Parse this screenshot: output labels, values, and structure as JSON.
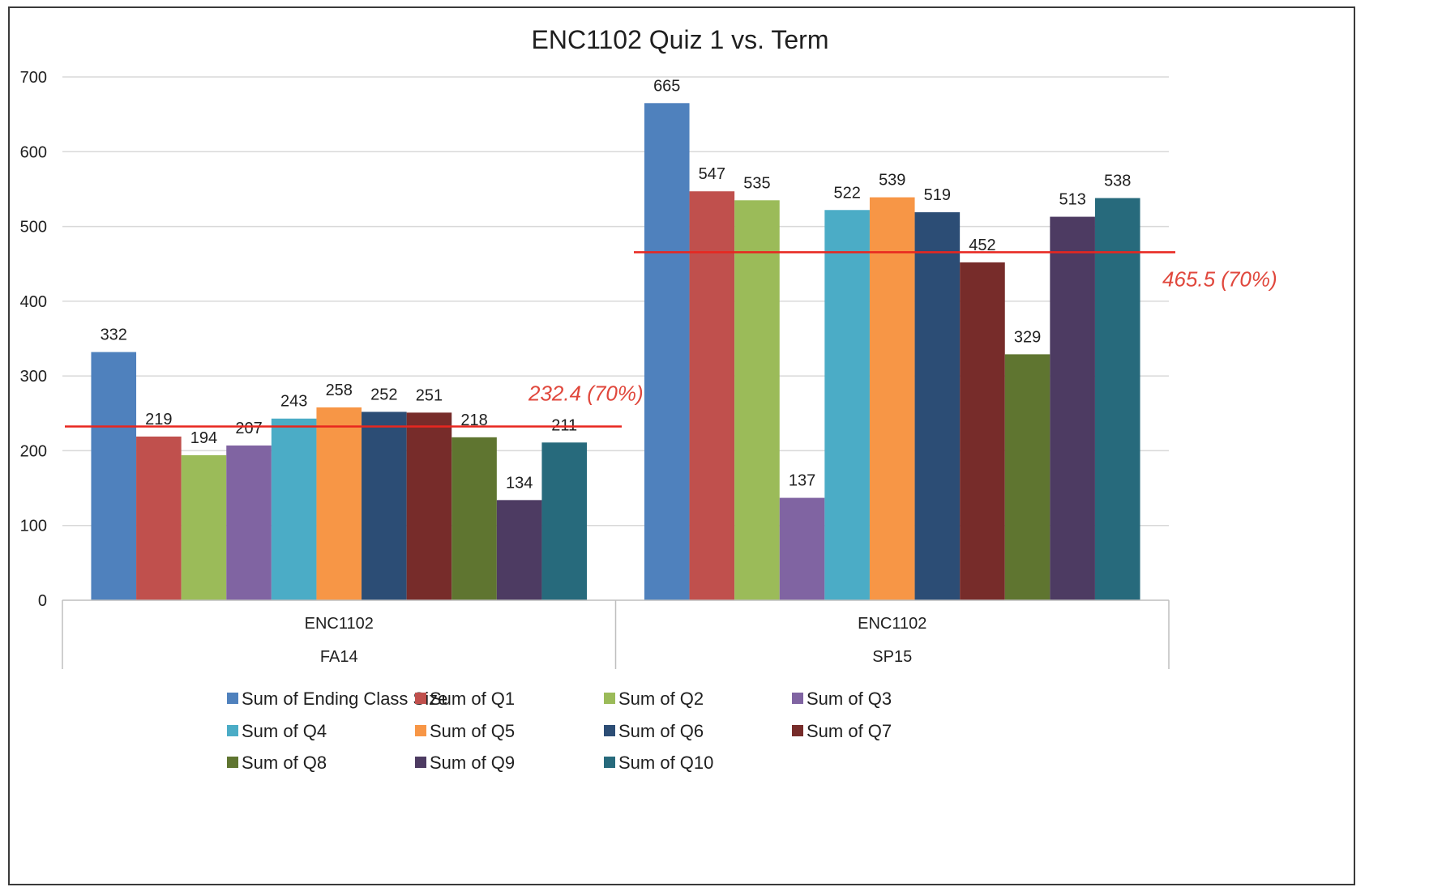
{
  "chart_data": {
    "type": "bar",
    "title": "ENC1102 Quiz 1 vs. Term",
    "xlabel": "",
    "ylabel": "",
    "ylim": [
      0,
      700
    ],
    "yticks": [
      0,
      100,
      200,
      300,
      400,
      500,
      600,
      700
    ],
    "grid": true,
    "legend_position": "bottom",
    "categories": [
      {
        "course": "ENC1102",
        "term": "FA14"
      },
      {
        "course": "ENC1102",
        "term": "SP15"
      }
    ],
    "series": [
      {
        "name": "Sum of Ending Class Size",
        "color": "#4f81bd",
        "values": [
          332,
          665
        ]
      },
      {
        "name": "Sum of Q1",
        "color": "#c0504d",
        "values": [
          219,
          547
        ]
      },
      {
        "name": "Sum of Q2",
        "color": "#9bbb59",
        "values": [
          194,
          535
        ]
      },
      {
        "name": "Sum of Q3",
        "color": "#8064a2",
        "values": [
          207,
          137
        ]
      },
      {
        "name": "Sum of Q4",
        "color": "#4bacc6",
        "values": [
          243,
          522
        ]
      },
      {
        "name": "Sum of Q5",
        "color": "#f79646",
        "values": [
          258,
          539
        ]
      },
      {
        "name": "Sum of Q6",
        "color": "#2c4d75",
        "values": [
          252,
          519
        ]
      },
      {
        "name": "Sum of Q7",
        "color": "#772c2a",
        "values": [
          251,
          452
        ]
      },
      {
        "name": "Sum of Q8",
        "color": "#5f7530",
        "values": [
          218,
          329
        ]
      },
      {
        "name": "Sum of Q9",
        "color": "#4d3b62",
        "values": [
          134,
          513
        ]
      },
      {
        "name": "Sum of Q10",
        "color": "#276a7c",
        "values": [
          211,
          538
        ]
      }
    ],
    "reference_lines": [
      {
        "category_index": 0,
        "value": 232.4,
        "label": "232.4 (70%)",
        "color": "#e8261f"
      },
      {
        "category_index": 1,
        "value": 465.5,
        "label": "465.5 (70%)",
        "color": "#e8261f"
      }
    ]
  }
}
